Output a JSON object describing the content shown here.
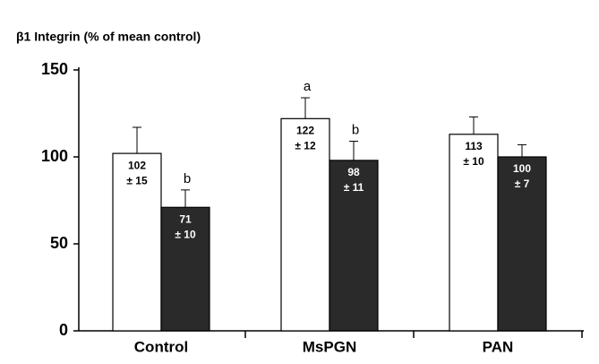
{
  "chart_data": {
    "type": "bar",
    "title": "β1 Integrin (% of mean control)",
    "categories": [
      "Control",
      "MsPGN",
      "PAN"
    ],
    "series": [
      {
        "color": "#ffffff",
        "values": [
          102,
          122,
          113
        ],
        "errors": [
          15,
          12,
          10
        ],
        "error_labels": [
          "± 15",
          "± 12",
          "± 10"
        ],
        "letters": [
          null,
          "a",
          null
        ]
      },
      {
        "color": "#2a2a2a",
        "values": [
          71,
          98,
          100
        ],
        "errors": [
          10,
          11,
          7
        ],
        "error_labels": [
          "± 10",
          "± 11",
          "± 7"
        ],
        "letters": [
          "b",
          "b",
          null
        ]
      }
    ],
    "ylim": [
      0,
      150
    ],
    "yticks": [
      0,
      50,
      100,
      150
    ]
  }
}
